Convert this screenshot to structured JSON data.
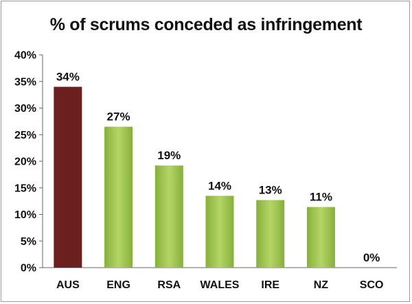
{
  "chart_data": {
    "type": "bar",
    "title": "% of scrums conceded as infringement",
    "xlabel": "",
    "ylabel": "",
    "categories": [
      "AUS",
      "ENG",
      "RSA",
      "WALES",
      "IRE",
      "NZ",
      "SCO"
    ],
    "values": [
      34,
      26.5,
      19.2,
      13.5,
      12.7,
      11.4,
      0
    ],
    "value_labels": [
      "34%",
      "27%",
      "19%",
      "14%",
      "13%",
      "11%",
      "0%"
    ],
    "ylim": [
      0,
      40
    ],
    "yticks": [
      "0%",
      "5%",
      "10%",
      "15%",
      "20%",
      "25%",
      "30%",
      "35%",
      "40%"
    ],
    "grid": false,
    "legend": "none",
    "colors": {
      "highlight": "#6b1f1f",
      "bar_light": "#b5d567",
      "bar_dark": "#86b03a"
    },
    "highlight_index": 0
  }
}
